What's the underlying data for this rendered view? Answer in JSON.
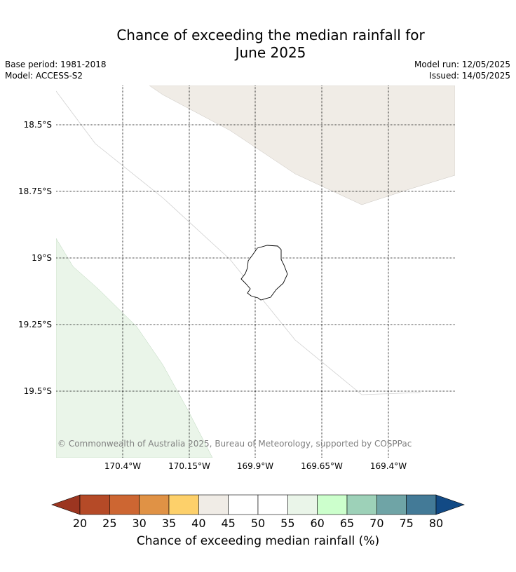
{
  "title_line1": "Chance of exceeding the median rainfall for",
  "title_line2": "June 2025",
  "base_period": "Base period: 1981-2018",
  "model": "Model: ACCESS-S2",
  "model_run": "Model run: 12/05/2025",
  "issued": "Issued: 14/05/2025",
  "copyright": "© Commonwealth of Australia 2025, Bureau of Meteorology, supported by COSPPac",
  "map": {
    "latitude_labels": [
      "18.5°S",
      "18.75°S",
      "19°S",
      "19.25°S",
      "19.5°S"
    ],
    "longitude_labels": [
      "170.4°W",
      "170.15°W",
      "169.9°W",
      "169.65°W",
      "169.4°W"
    ],
    "region_colors": {
      "upper_right": "#f0ece6",
      "lower_left": "#eaf5e9"
    }
  },
  "colorbar": {
    "label": "Chance of exceeding median rainfall (%)",
    "ticks": [
      "20",
      "25",
      "30",
      "35",
      "40",
      "45",
      "50",
      "55",
      "60",
      "65",
      "70",
      "75",
      "80"
    ],
    "colors": [
      "#9c3520",
      "#b54a27",
      "#cd6632",
      "#e09245",
      "#fdd06a",
      "#f0ece6",
      "#ffffff",
      "#ffffff",
      "#eaf5e9",
      "#ccffcc",
      "#9dd1b8",
      "#6fa4a6",
      "#437a97",
      "#124a85"
    ]
  }
}
